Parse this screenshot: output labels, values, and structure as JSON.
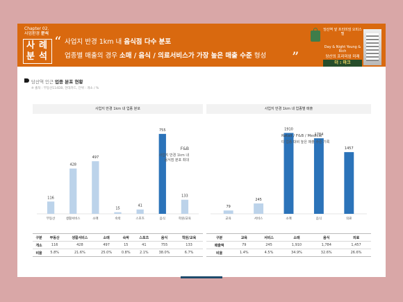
{
  "header": {
    "chapter": "Chapter 02.",
    "chapter_sub_prefix": "사업환경 ",
    "chapter_sub_bold": "분석",
    "case_label": "사례분석",
    "quote_open": "“",
    "quote_close": "”",
    "line1_normal": "사업지 반경 1km 내 ",
    "line1_bold": "음식점 다수 분포",
    "line2_normal": "업종별 매출의 경우 ",
    "line2_bold": "소매 / 음식 / 의료서비스가 가장 높은 매출 수준",
    "line2_tail": " 형성"
  },
  "promo": {
    "top_text": "당산역 앞 프리미엄 오피스텔",
    "mid_text": "Day & Night Young & Rich",
    "sub_text": "당산의 프리미엄 미래",
    "tag_text": "더 : 마크"
  },
  "section": {
    "title_normal": "당산역 인근 ",
    "title_bold": "업종 분포 현황",
    "source": "※ 출처 : 부동산114DB, 현대카드, 단위 : 개소 / %"
  },
  "colors": {
    "light_bar": "#bcd3ea",
    "dark_bar": "#2b73b9",
    "header": "#d9690f"
  },
  "chart_data": [
    {
      "type": "bar",
      "title": "사업지 반경 1km 내 업종 분포",
      "categories": [
        "부동산",
        "생활서비스",
        "소매",
        "숙박",
        "스포츠",
        "음식",
        "학원/교육"
      ],
      "values": [
        116,
        428,
        497,
        15,
        41,
        755,
        133
      ],
      "highlight_index": 5,
      "annotation_title": "F&B",
      "annotation_lines": [
        "사업지 반경 1km 내",
        "음식점 분포 최대"
      ],
      "ylim": [
        0,
        800
      ],
      "table": {
        "headers": [
          "구분",
          "부동산",
          "생활서비스",
          "소매",
          "숙박",
          "스포츠",
          "음식",
          "학원/교육"
        ],
        "rows": [
          [
            "개소",
            "116",
            "428",
            "497",
            "15",
            "41",
            "755",
            "133"
          ],
          [
            "비율",
            "5.8%",
            "21.6%",
            "25.0%",
            "0.8%",
            "2.1%",
            "38.0%",
            "6.7%"
          ]
        ]
      }
    },
    {
      "type": "bar",
      "title": "사업지 반경 1km 내 업종별 매출",
      "categories": [
        "교육",
        "서비스",
        "소매",
        "음식",
        "의료"
      ],
      "values": [
        79,
        245,
        1910,
        1784,
        1457
      ],
      "highlight_indices": [
        2,
        3,
        4
      ],
      "annotation_title": "Retail / F&B / Medical",
      "annotation_lines": [
        "타 업종 대비 높은 매출 수준 기록"
      ],
      "ylim": [
        0,
        2000
      ],
      "table": {
        "headers": [
          "구분",
          "교육",
          "서비스",
          "소매",
          "음식",
          "의료"
        ],
        "rows": [
          [
            "매출액",
            "79",
            "245",
            "1,910",
            "1,784",
            "1,457"
          ],
          [
            "비율",
            "1.4%",
            "4.5%",
            "34.9%",
            "32.6%",
            "26.6%"
          ]
        ]
      }
    }
  ]
}
